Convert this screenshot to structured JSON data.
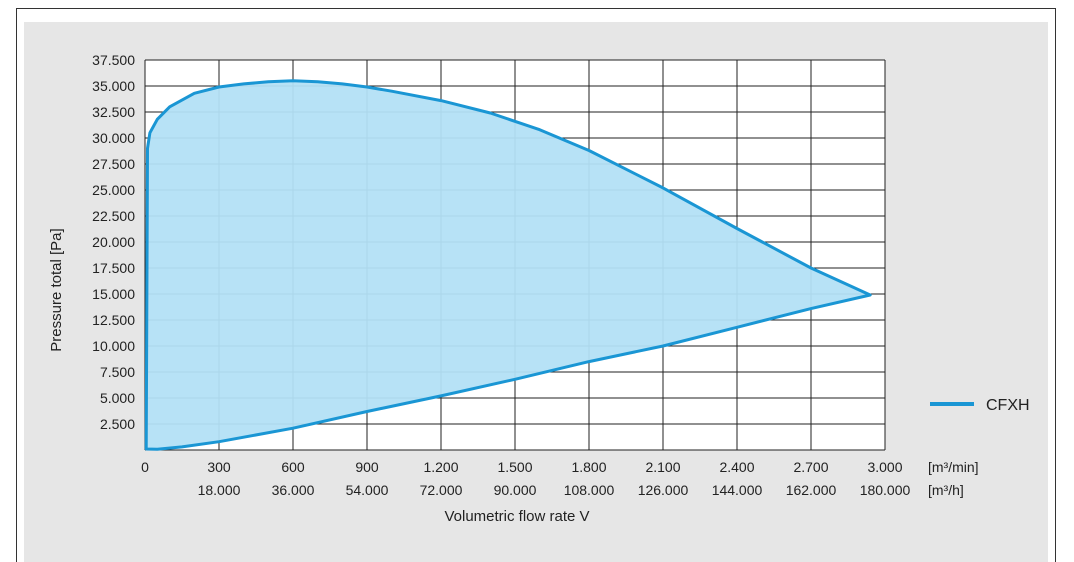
{
  "chart_data": {
    "type": "area",
    "xlabel": "Volumetric flow rate V",
    "ylabel": "Pressure total  [Pa]",
    "x_unit_primary": "[m³/min]",
    "x_unit_secondary": "[m³/h]",
    "xlim": [
      0,
      3000
    ],
    "ylim": [
      0,
      37500
    ],
    "x_ticks": [
      {
        "v": 0,
        "primary": "0",
        "secondary": ""
      },
      {
        "v": 300,
        "primary": "300",
        "secondary": "18.000"
      },
      {
        "v": 600,
        "primary": "600",
        "secondary": "36.000"
      },
      {
        "v": 900,
        "primary": "900",
        "secondary": "54.000"
      },
      {
        "v": 1200,
        "primary": "1.200",
        "secondary": "72.000"
      },
      {
        "v": 1500,
        "primary": "1.500",
        "secondary": "90.000"
      },
      {
        "v": 1800,
        "primary": "1.800",
        "secondary": "108.000"
      },
      {
        "v": 2100,
        "primary": "2.100",
        "secondary": "126.000"
      },
      {
        "v": 2400,
        "primary": "2.400",
        "secondary": "144.000"
      },
      {
        "v": 2700,
        "primary": "2.700",
        "secondary": "162.000"
      },
      {
        "v": 3000,
        "primary": "3.000",
        "secondary": "180.000"
      }
    ],
    "y_ticks": [
      {
        "v": 2500,
        "label": "2.500"
      },
      {
        "v": 5000,
        "label": "5.000"
      },
      {
        "v": 7500,
        "label": "7.500"
      },
      {
        "v": 10000,
        "label": "10.000"
      },
      {
        "v": 12500,
        "label": "12.500"
      },
      {
        "v": 15000,
        "label": "15.000"
      },
      {
        "v": 17500,
        "label": "17.500"
      },
      {
        "v": 20000,
        "label": "20.000"
      },
      {
        "v": 22500,
        "label": "22.500"
      },
      {
        "v": 25000,
        "label": "25.000"
      },
      {
        "v": 27500,
        "label": "27.500"
      },
      {
        "v": 30000,
        "label": "30.000"
      },
      {
        "v": 32500,
        "label": "32.500"
      },
      {
        "v": 35000,
        "label": "35.000"
      },
      {
        "v": 37500,
        "label": "37.500"
      }
    ],
    "grid": true,
    "legend": "right",
    "series": [
      {
        "name": "CFXH",
        "color": "#1a96d4",
        "fill": "#b3e0f5",
        "points": [
          [
            5,
            100
          ],
          [
            10,
            29000
          ],
          [
            20,
            30500
          ],
          [
            50,
            31800
          ],
          [
            100,
            33000
          ],
          [
            200,
            34300
          ],
          [
            300,
            34900
          ],
          [
            400,
            35200
          ],
          [
            500,
            35400
          ],
          [
            600,
            35500
          ],
          [
            700,
            35400
          ],
          [
            800,
            35200
          ],
          [
            900,
            34900
          ],
          [
            1000,
            34500
          ],
          [
            1200,
            33600
          ],
          [
            1400,
            32400
          ],
          [
            1600,
            30800
          ],
          [
            1800,
            28800
          ],
          [
            2100,
            25200
          ],
          [
            2400,
            21300
          ],
          [
            2700,
            17500
          ],
          [
            2940,
            14900
          ],
          [
            2700,
            13600
          ],
          [
            2400,
            11800
          ],
          [
            2100,
            10000
          ],
          [
            1800,
            8500
          ],
          [
            1500,
            6800
          ],
          [
            1200,
            5200
          ],
          [
            900,
            3700
          ],
          [
            600,
            2100
          ],
          [
            300,
            800
          ],
          [
            150,
            300
          ],
          [
            50,
            80
          ],
          [
            5,
            100
          ]
        ]
      }
    ]
  }
}
